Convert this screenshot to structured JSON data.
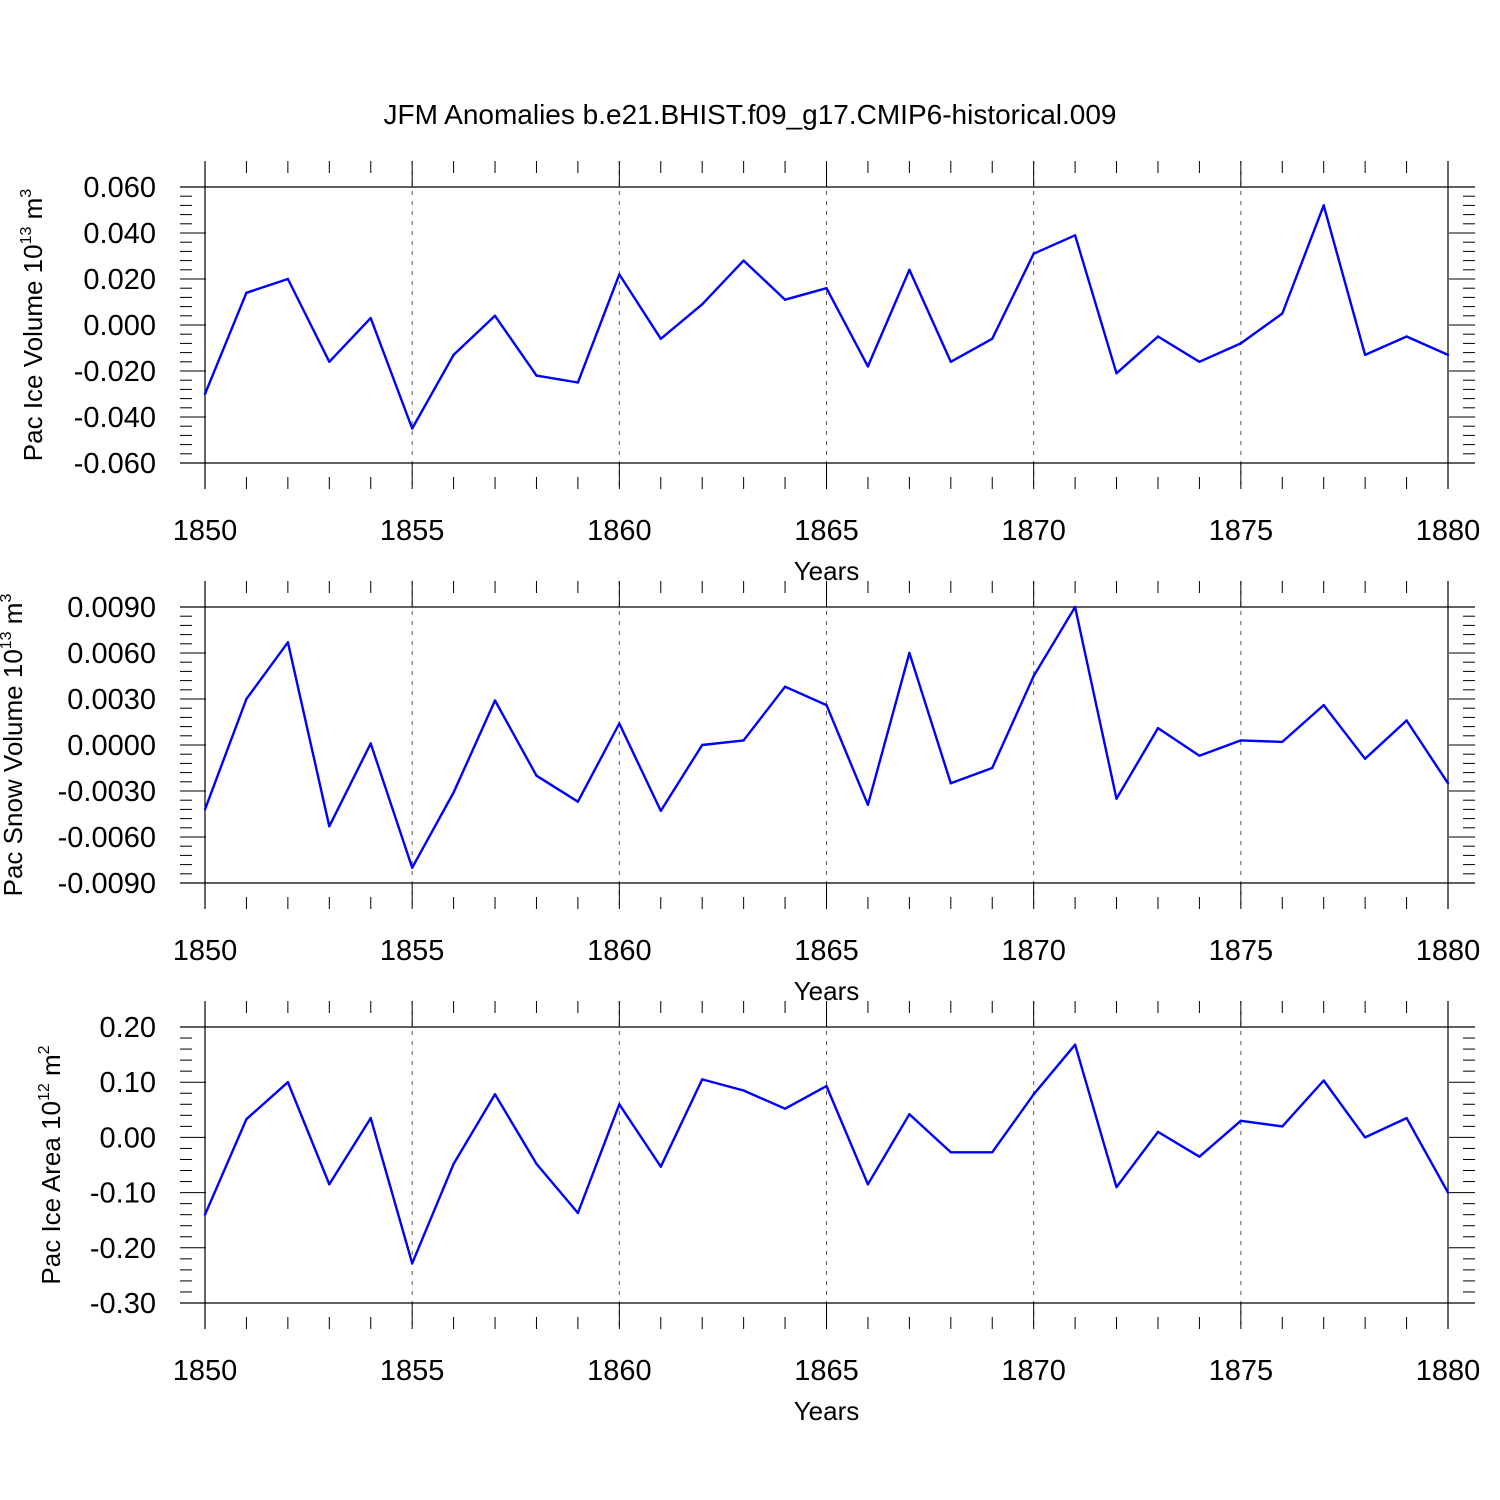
{
  "title": "JFM Anomalies b.e21.BHIST.f09_g17.CMIP6-historical.009",
  "style": {
    "line_color": "#0000ff",
    "axis_color": "#000000",
    "grid_color": "#555555"
  },
  "chart_data": [
    {
      "type": "line",
      "ylabel": "Pac Ice Volume 10",
      "ylabel_exp": "13",
      "ylabel_unit": "m",
      "ylabel_unit_exp": "3",
      "xlabel": "Years",
      "xlim": [
        1850,
        1880
      ],
      "ylim": [
        -0.06,
        0.06
      ],
      "xticks": [
        "1850",
        "1855",
        "1860",
        "1865",
        "1870",
        "1875",
        "1880"
      ],
      "yticks": [
        "0.060",
        "0.040",
        "0.020",
        "0.000",
        "-0.020",
        "-0.040",
        "-0.060"
      ],
      "ytick_values": [
        0.06,
        0.04,
        0.02,
        0.0,
        -0.02,
        -0.04,
        -0.06
      ],
      "x": [
        1850,
        1851,
        1852,
        1853,
        1854,
        1855,
        1856,
        1857,
        1858,
        1859,
        1860,
        1861,
        1862,
        1863,
        1864,
        1865,
        1866,
        1867,
        1868,
        1869,
        1870,
        1871,
        1872,
        1873,
        1874,
        1875,
        1876,
        1877,
        1878,
        1879,
        1880
      ],
      "values": [
        -0.03,
        0.014,
        0.02,
        -0.016,
        0.003,
        -0.045,
        -0.013,
        0.004,
        -0.022,
        -0.025,
        0.022,
        -0.006,
        0.009,
        0.028,
        0.011,
        0.016,
        -0.018,
        0.024,
        -0.016,
        -0.006,
        0.031,
        0.039,
        -0.021,
        -0.005,
        -0.016,
        -0.008,
        0.005,
        0.052,
        -0.013,
        -0.005,
        -0.013
      ]
    },
    {
      "type": "line",
      "ylabel": "Pac Snow Volume 10",
      "ylabel_exp": "13",
      "ylabel_unit": "m",
      "ylabel_unit_exp": "3",
      "xlabel": "Years",
      "xlim": [
        1850,
        1880
      ],
      "ylim": [
        -0.009,
        0.009
      ],
      "xticks": [
        "1850",
        "1855",
        "1860",
        "1865",
        "1870",
        "1875",
        "1880"
      ],
      "yticks": [
        "0.0090",
        "0.0060",
        "0.0030",
        "0.0000",
        "-0.0030",
        "-0.0060",
        "-0.0090"
      ],
      "ytick_values": [
        0.009,
        0.006,
        0.003,
        0.0,
        -0.003,
        -0.006,
        -0.009
      ],
      "x": [
        1850,
        1851,
        1852,
        1853,
        1854,
        1855,
        1856,
        1857,
        1858,
        1859,
        1860,
        1861,
        1862,
        1863,
        1864,
        1865,
        1866,
        1867,
        1868,
        1869,
        1870,
        1871,
        1872,
        1873,
        1874,
        1875,
        1876,
        1877,
        1878,
        1879,
        1880
      ],
      "values": [
        -0.0042,
        0.003,
        0.0067,
        -0.0053,
        0.0001,
        -0.008,
        -0.0031,
        0.0029,
        -0.002,
        -0.0037,
        0.0014,
        -0.0043,
        0.0,
        0.0003,
        0.0038,
        0.0026,
        -0.0039,
        0.006,
        -0.0025,
        -0.0015,
        0.0045,
        0.009,
        -0.0035,
        0.0011,
        -0.0007,
        0.0003,
        0.0002,
        0.0026,
        -0.0009,
        0.0016,
        -0.0025
      ]
    },
    {
      "type": "line",
      "ylabel": "Pac Ice Area 10",
      "ylabel_exp": "12",
      "ylabel_unit": "m",
      "ylabel_unit_exp": "2",
      "xlabel": "Years",
      "xlim": [
        1850,
        1880
      ],
      "ylim": [
        -0.3,
        0.2
      ],
      "xticks": [
        "1850",
        "1855",
        "1860",
        "1865",
        "1870",
        "1875",
        "1880"
      ],
      "yticks": [
        "0.20",
        "0.10",
        "0.00",
        "-0.10",
        "-0.20",
        "-0.30"
      ],
      "ytick_values": [
        0.2,
        0.1,
        0.0,
        -0.1,
        -0.2,
        -0.3
      ],
      "x": [
        1850,
        1851,
        1852,
        1853,
        1854,
        1855,
        1856,
        1857,
        1858,
        1859,
        1860,
        1861,
        1862,
        1863,
        1864,
        1865,
        1866,
        1867,
        1868,
        1869,
        1870,
        1871,
        1872,
        1873,
        1874,
        1875,
        1876,
        1877,
        1878,
        1879,
        1880
      ],
      "values": [
        -0.14,
        0.033,
        0.1,
        -0.085,
        0.035,
        -0.228,
        -0.048,
        0.078,
        -0.048,
        -0.137,
        0.06,
        -0.053,
        0.105,
        0.085,
        0.052,
        0.093,
        -0.085,
        0.042,
        -0.027,
        -0.027,
        0.078,
        0.168,
        -0.09,
        0.01,
        -0.035,
        0.03,
        0.02,
        0.103,
        0.0,
        0.035,
        -0.1
      ]
    }
  ]
}
